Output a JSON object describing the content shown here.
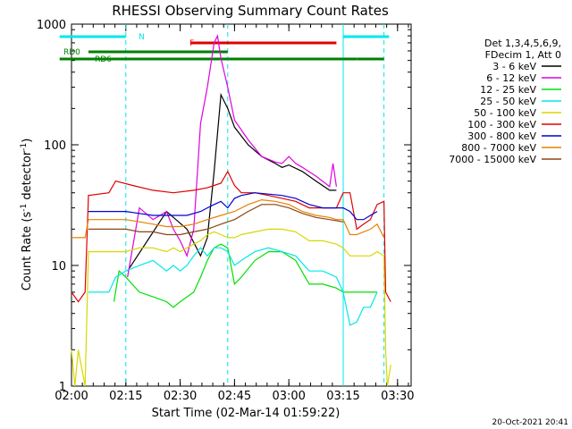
{
  "chart_data": {
    "type": "line",
    "title": "RHESSI Observing Summary Count Rates",
    "xlabel": "Start Time (02-Mar-14 01:59:22)",
    "ylabel_main": "Count Rate (s",
    "ylabel_exp1": "-1",
    "ylabel_mid": " detector",
    "ylabel_exp2": "-1",
    "ylabel_end": ")",
    "yscale": "log",
    "ylim": [
      1,
      1000
    ],
    "xlim_min": [
      0,
      100
    ],
    "x_tick_labels": [
      "02:00",
      "02:15",
      "02:30",
      "02:45",
      "03:00",
      "03:15",
      "03:30"
    ],
    "y_tick_labels": [
      "1",
      "10",
      "100",
      "1000"
    ],
    "legend_header": [
      "Det 1,3,4,5,6,9,",
      "FDecim 1, Att 0"
    ],
    "footer_date": "20-Oct-2021 20:41",
    "series": [
      {
        "name": "3 - 6 keV",
        "color": "#000000",
        "x": [
          0,
          16,
          16.5,
          28,
          34,
          38,
          40,
          42,
          44,
          46,
          48,
          52,
          56,
          60,
          62,
          64,
          68,
          72,
          76,
          78,
          78.5,
          82,
          84,
          86,
          88,
          90,
          92
        ],
        "y": [
          null,
          null,
          9,
          28,
          20,
          12,
          17,
          60,
          260,
          200,
          140,
          100,
          80,
          70,
          65,
          68,
          60,
          50,
          42,
          42,
          null,
          null,
          null,
          null,
          null,
          null,
          null
        ]
      },
      {
        "name": "6 - 12 keV",
        "color": "#e000e0",
        "x": [
          0,
          16,
          16.5,
          20,
          24,
          28,
          30,
          32,
          34,
          36,
          38,
          40,
          42,
          43,
          44,
          46,
          48,
          52,
          56,
          60,
          62,
          64,
          66,
          68,
          72,
          76,
          77,
          78,
          78.5
        ],
        "y": [
          null,
          null,
          8,
          30,
          24,
          28,
          20,
          16,
          12,
          20,
          150,
          300,
          700,
          800,
          520,
          300,
          160,
          110,
          80,
          72,
          70,
          80,
          70,
          65,
          55,
          45,
          70,
          45,
          null
        ]
      },
      {
        "name": "12 - 25 keV",
        "color": "#00e000",
        "x": [
          0,
          11,
          12.5,
          14,
          16,
          20,
          24,
          28,
          30,
          32,
          36,
          38,
          40,
          42,
          44,
          46,
          48,
          50,
          54,
          58,
          62,
          66,
          70,
          74,
          78,
          80,
          82,
          84,
          86,
          88,
          90,
          92
        ],
        "y": [
          null,
          null,
          5,
          9,
          8,
          6,
          5.5,
          5,
          4.5,
          5,
          6,
          8,
          11,
          14,
          15,
          14,
          7,
          8,
          11,
          13,
          13,
          11,
          7,
          7,
          6.5,
          6,
          6,
          6,
          6,
          6,
          6,
          null
        ]
      },
      {
        "name": "25 - 50 keV",
        "color": "#00e8e8",
        "x": [
          0,
          4,
          5,
          11,
          13,
          16,
          20,
          24,
          28,
          30,
          32,
          34,
          36,
          38,
          40,
          42,
          44,
          46,
          48,
          50,
          54,
          58,
          62,
          66,
          70,
          74,
          78,
          80,
          82,
          84,
          86,
          88,
          90,
          92
        ],
        "y": [
          null,
          null,
          6,
          6,
          8,
          9,
          10,
          11,
          9,
          10,
          9,
          10,
          12,
          14,
          12,
          14,
          14,
          13,
          10,
          11,
          13,
          14,
          13,
          12,
          9,
          9,
          8,
          6,
          3.2,
          3.4,
          4.5,
          4.5,
          6,
          null
        ]
      },
      {
        "name": "50 - 100 keV",
        "color": "#d8d800",
        "x": [
          0,
          1,
          2,
          4,
          5,
          16,
          20,
          24,
          28,
          30,
          32,
          34,
          36,
          38,
          40,
          42,
          44,
          46,
          48,
          50,
          54,
          58,
          62,
          66,
          70,
          74,
          78,
          80,
          82,
          84,
          86,
          88,
          90,
          92,
          92.5,
          93,
          94
        ],
        "y": [
          2,
          1,
          2,
          1,
          13,
          13,
          14,
          14,
          13,
          14,
          13,
          14,
          15,
          16,
          18,
          19,
          18,
          17,
          17,
          18,
          19,
          20,
          20,
          19,
          16,
          16,
          15,
          14,
          12,
          12,
          12,
          12,
          13,
          12,
          2,
          1,
          1.5
        ]
      },
      {
        "name": "100 - 300 keV",
        "color": "#e00000",
        "x": [
          0,
          2,
          4,
          5,
          11,
          13,
          18,
          24,
          30,
          36,
          40,
          42,
          44,
          46,
          48,
          50,
          54,
          58,
          62,
          66,
          70,
          74,
          78,
          80,
          82,
          84,
          86,
          88,
          90,
          92,
          92.5,
          94
        ],
        "y": [
          6,
          5,
          6,
          38,
          40,
          50,
          46,
          42,
          40,
          42,
          44,
          46,
          48,
          60,
          46,
          40,
          40,
          38,
          36,
          34,
          30,
          30,
          30,
          40,
          40,
          20,
          22,
          24,
          32,
          34,
          6,
          5
        ]
      },
      {
        "name": "300 - 800 keV",
        "color": "#0000d0",
        "x": [
          0,
          4,
          5,
          16,
          20,
          24,
          30,
          34,
          38,
          40,
          42,
          44,
          46,
          48,
          50,
          54,
          58,
          62,
          66,
          70,
          74,
          78,
          80,
          82,
          84,
          86,
          88,
          90,
          92
        ],
        "y": [
          null,
          null,
          28,
          28,
          27,
          26,
          26,
          26,
          28,
          30,
          32,
          34,
          30,
          36,
          38,
          40,
          39,
          38,
          36,
          32,
          30,
          30,
          30,
          28,
          24,
          24,
          26,
          28,
          null
        ]
      },
      {
        "name": "800 - 7000 keV",
        "color": "#e88000",
        "x": [
          0,
          4,
          5,
          16,
          20,
          24,
          28,
          32,
          36,
          40,
          44,
          48,
          52,
          56,
          60,
          64,
          68,
          72,
          76,
          78,
          80,
          82,
          84,
          86,
          88,
          90,
          92
        ],
        "y": [
          17,
          17,
          24,
          24,
          23,
          22,
          21,
          21,
          22,
          24,
          26,
          28,
          32,
          35,
          34,
          32,
          28,
          26,
          25,
          24,
          24,
          18,
          18,
          19,
          20,
          22,
          17
        ]
      },
      {
        "name": "7000 - 15000 keV",
        "color": "#8b4513",
        "x": [
          0,
          4,
          5,
          16,
          20,
          24,
          28,
          32,
          36,
          40,
          44,
          48,
          52,
          56,
          60,
          64,
          68,
          72,
          76,
          80,
          82,
          84,
          86,
          88,
          90,
          92
        ],
        "y": [
          null,
          null,
          20,
          20,
          19,
          19,
          18,
          18,
          19,
          20,
          22,
          24,
          28,
          32,
          32,
          30,
          27,
          25,
          24,
          23,
          null,
          null,
          null,
          null,
          null,
          null
        ]
      }
    ],
    "flags": [
      {
        "name": "N",
        "color": "#00e8e8",
        "segments": [
          [
            -3.5,
            16
          ],
          [
            80,
            93.5
          ]
        ]
      },
      {
        "name": "F",
        "color": "#e00000",
        "segments": [
          [
            35,
            78
          ]
        ]
      },
      {
        "name": "RD0",
        "color": "#008000",
        "segments": [
          [
            5,
            46
          ]
        ]
      },
      {
        "name": "RD6",
        "color": "#008000",
        "segments": [
          [
            -3.5,
            46
          ],
          [
            46,
            65
          ],
          [
            65,
            84
          ],
          [
            84,
            92
          ]
        ]
      }
    ],
    "vlines": [
      {
        "x": 16,
        "color": "#00e8e8",
        "style": "dashed"
      },
      {
        "x": 46,
        "color": "#00e8e8",
        "style": "dashed"
      },
      {
        "x": 80,
        "color": "#00e8e8",
        "style": "solid"
      },
      {
        "x": 92,
        "color": "#00e8e8",
        "style": "dashed"
      }
    ]
  }
}
